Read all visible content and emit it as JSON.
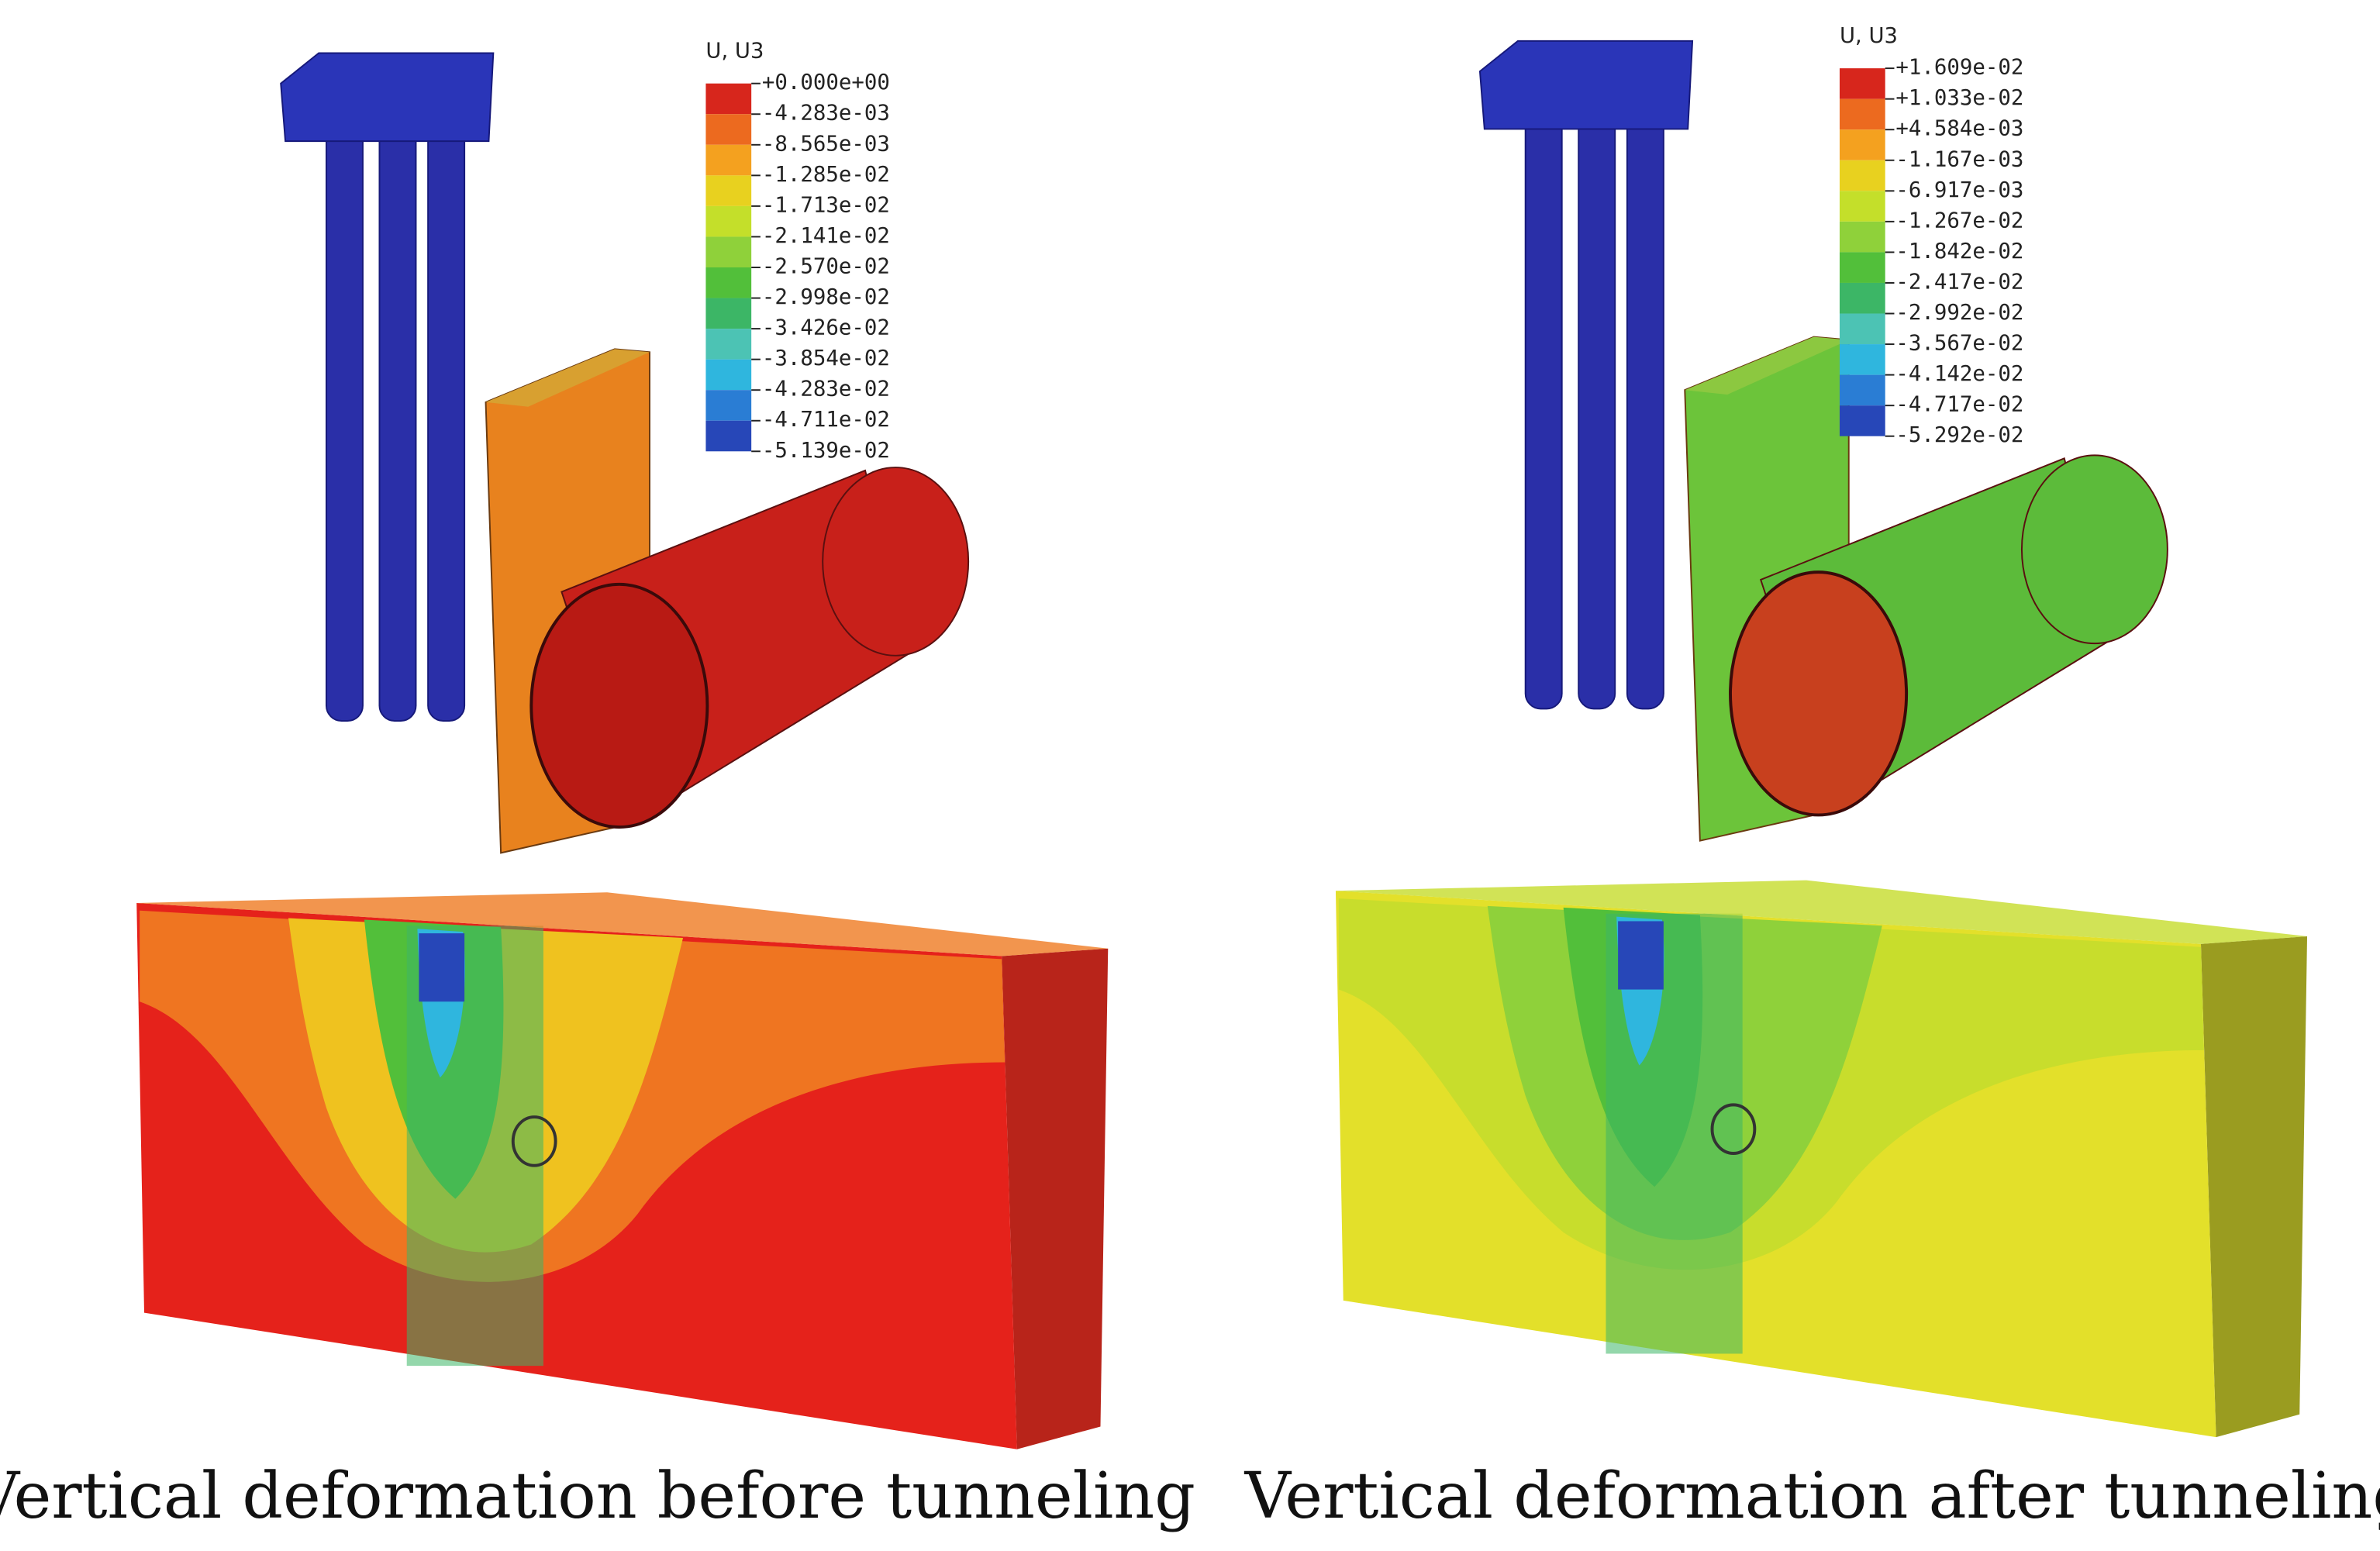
{
  "panels": [
    {
      "legend": {
        "title": "U, U3",
        "labels": [
          "+0.000e+00",
          "-4.283e-03",
          "-8.565e-03",
          "-1.285e-02",
          "-1.713e-02",
          "-2.141e-02",
          "-2.570e-02",
          "-2.998e-02",
          "-3.426e-02",
          "-3.854e-02",
          "-4.283e-02",
          "-4.711e-02",
          "-5.139e-02"
        ]
      },
      "caption": "Vertical deformation before tunneling"
    },
    {
      "legend": {
        "title": "U, U3",
        "labels": [
          "+1.609e-02",
          "+1.033e-02",
          "+4.584e-03",
          "-1.167e-03",
          "-6.917e-03",
          "-1.267e-02",
          "-1.842e-02",
          "-2.417e-02",
          "-2.992e-02",
          "-3.567e-02",
          "-4.142e-02",
          "-4.717e-02",
          "-5.292e-02"
        ]
      },
      "caption": "Vertical deformation after tunneling"
    }
  ]
}
